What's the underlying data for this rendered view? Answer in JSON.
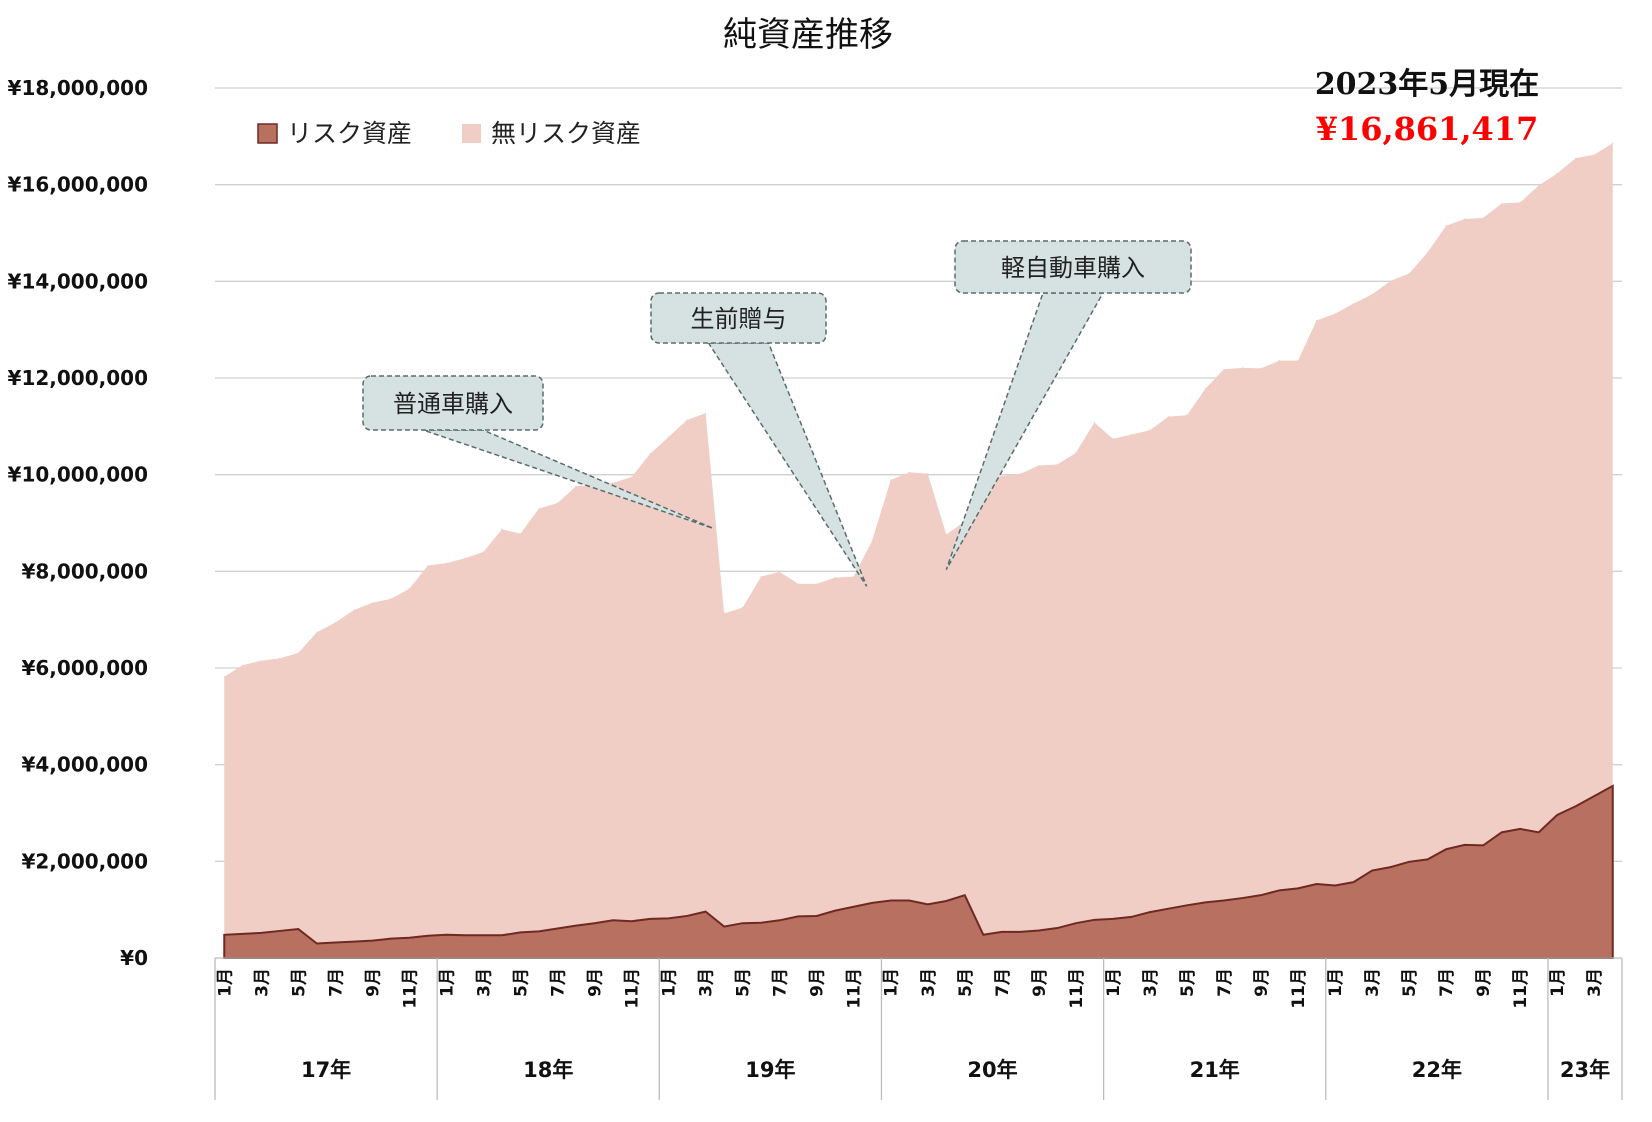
{
  "chart_data": {
    "type": "area",
    "title": "純資産推移",
    "annotation_date": "2023年5月現在",
    "annotation_total": "¥16,861,417",
    "legend": [
      "リスク資産",
      "無リスク資産"
    ],
    "legend_placement": "top-left",
    "grid": true,
    "stacked": true,
    "ylim": [
      0,
      18000000
    ],
    "yticks": [
      0,
      2000000,
      4000000,
      6000000,
      8000000,
      10000000,
      12000000,
      14000000,
      16000000,
      18000000
    ],
    "ytick_labels": [
      "¥0",
      "¥2,000,000",
      "¥4,000,000",
      "¥6,000,000",
      "¥8,000,000",
      "¥10,000,000",
      "¥12,000,000",
      "¥14,000,000",
      "¥16,000,000",
      "¥18,000,000"
    ],
    "year_labels": [
      {
        "label": "17年",
        "start": 0,
        "count": 12
      },
      {
        "label": "18年",
        "start": 12,
        "count": 12
      },
      {
        "label": "19年",
        "start": 24,
        "count": 12
      },
      {
        "label": "20年",
        "start": 36,
        "count": 12
      },
      {
        "label": "21年",
        "start": 48,
        "count": 12
      },
      {
        "label": "22年",
        "start": 60,
        "count": 12
      },
      {
        "label": "23年",
        "start": 72,
        "count": 4
      }
    ],
    "month_labels": [
      "1月",
      "3月",
      "5月",
      "7月",
      "9月",
      "11月"
    ],
    "colors": {
      "risk": "#b87060",
      "risk_stroke": "#6e2a22",
      "riskfree": "#f0cdc5",
      "grid": "#d0d0d0",
      "callout_fill": "#d5e2e1",
      "callout_stroke": "#5a6d6c"
    },
    "series": [
      {
        "name": "リスク資産",
        "values": [
          480000,
          500000,
          520000,
          560000,
          600000,
          300000,
          320000,
          340000,
          360000,
          400000,
          420000,
          460000,
          480000,
          470000,
          470000,
          470000,
          530000,
          550000,
          610000,
          670000,
          720000,
          780000,
          760000,
          810000,
          820000,
          870000,
          960000,
          650000,
          720000,
          730000,
          780000,
          860000,
          870000,
          980000,
          1060000,
          1140000,
          1190000,
          1190000,
          1110000,
          1180000,
          1300000,
          480000,
          540000,
          540000,
          570000,
          620000,
          720000,
          790000,
          810000,
          850000,
          950000,
          1020000,
          1090000,
          1150000,
          1190000,
          1240000,
          1300000,
          1400000,
          1440000,
          1530000,
          1500000,
          1570000,
          1810000,
          1880000,
          1990000,
          2040000,
          2250000,
          2340000,
          2330000,
          2600000,
          2670000,
          2600000,
          2960000,
          3140000,
          3350000,
          3560000
        ]
      },
      {
        "name": "無リスク資産",
        "values": [
          5340000,
          5560000,
          5630000,
          5640000,
          5710000,
          6440000,
          6620000,
          6860000,
          6990000,
          7030000,
          7220000,
          7660000,
          7690000,
          7800000,
          7930000,
          8400000,
          8250000,
          8750000,
          8800000,
          9090000,
          9070000,
          9050000,
          9190000,
          9620000,
          9960000,
          10260000,
          10310000,
          6480000,
          6530000,
          7160000,
          7210000,
          6880000,
          6870000,
          6890000,
          6830000,
          7500000,
          8700000,
          8860000,
          8910000,
          7580000,
          7730000,
          9440000,
          9430000,
          9480000,
          9620000,
          9590000,
          9730000,
          10290000,
          9930000,
          9980000,
          9970000,
          10180000,
          10140000,
          10630000,
          10990000,
          10970000,
          10900000,
          10960000,
          10920000,
          11660000,
          11830000,
          11970000,
          11920000,
          12130000,
          12170000,
          12560000,
          12900000,
          12950000,
          12980000,
          13010000,
          12960000,
          13380000,
          13270000,
          13410000,
          13270000,
          13300000
        ]
      }
    ],
    "callouts": [
      {
        "label": "普通車購入",
        "index": 26.4
      },
      {
        "label": "生前贈与",
        "index": 34.7
      },
      {
        "label": "軽自動車購入",
        "index": 39.0
      }
    ]
  }
}
